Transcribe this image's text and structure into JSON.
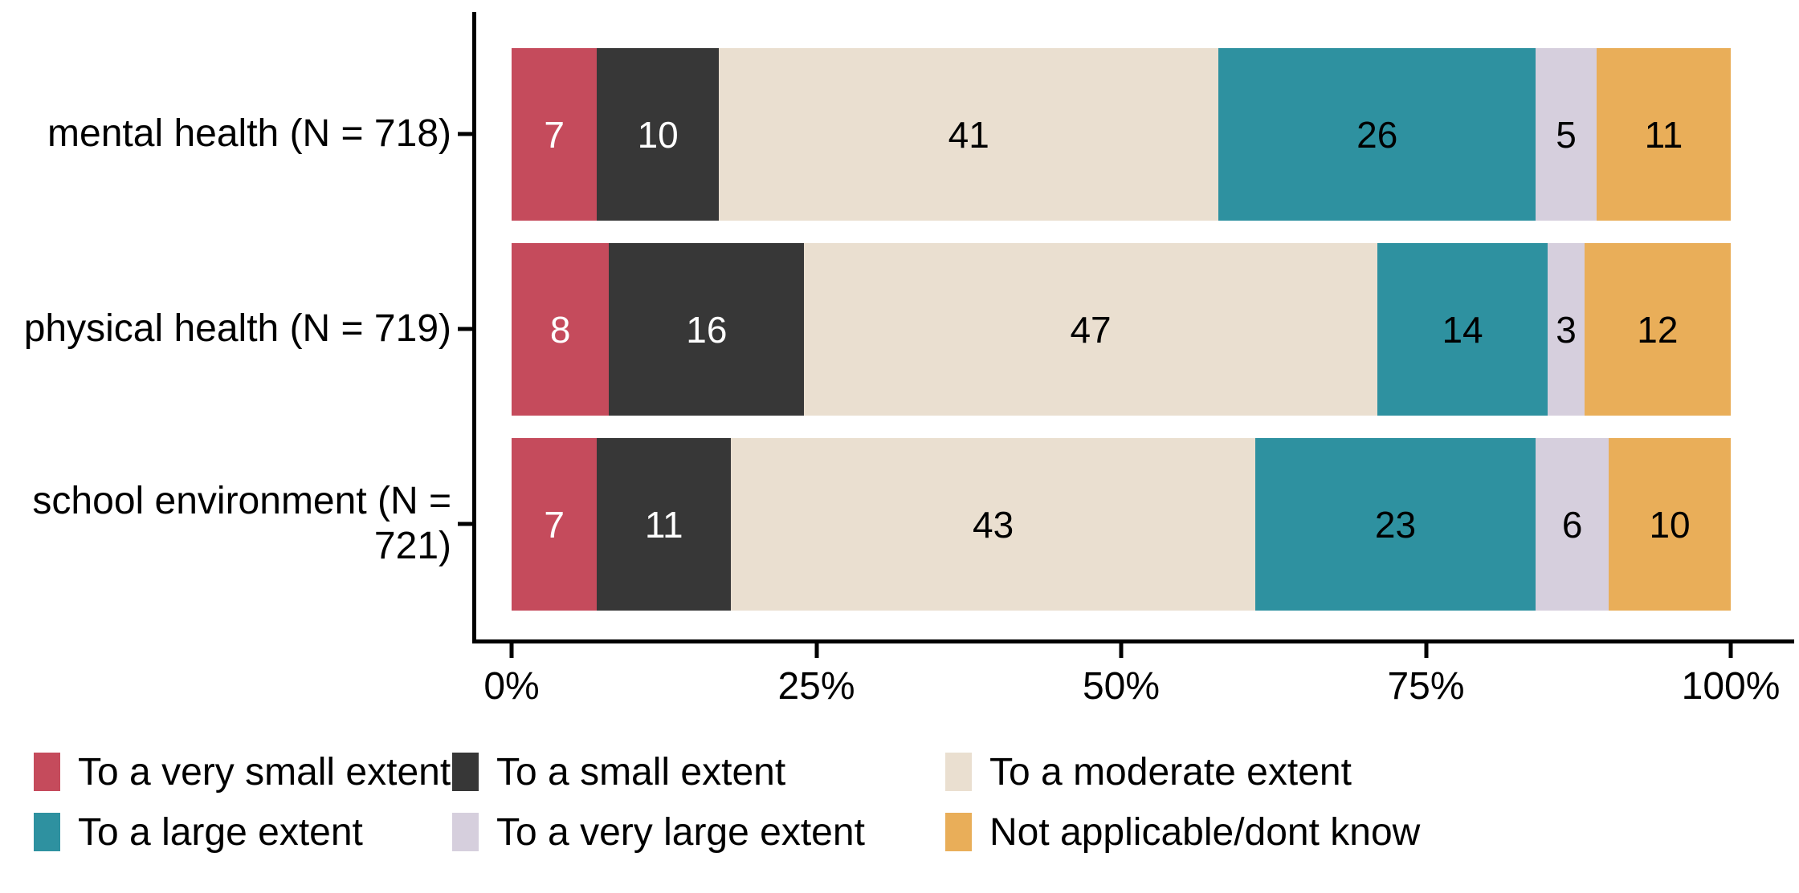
{
  "chart_data": {
    "type": "bar",
    "subtype": "horizontal_stacked_percent",
    "title": "",
    "xlabel": "",
    "ylabel": "",
    "categories": [
      "mental health (N = 718)",
      "physical health (N = 719)",
      "school environment (N = 721)"
    ],
    "series": [
      {
        "name": "To a very small extent",
        "color": "#C54B5C",
        "label_color": "#FFFFFF",
        "values": [
          7,
          8,
          7
        ]
      },
      {
        "name": "To a small extent",
        "color": "#373737",
        "label_color": "#FFFFFF",
        "values": [
          10,
          16,
          11
        ]
      },
      {
        "name": "To a moderate extent",
        "color": "#EADFD0",
        "label_color": "#000000",
        "values": [
          41,
          47,
          43
        ]
      },
      {
        "name": "To a large extent",
        "color": "#2E91A0",
        "label_color": "#000000",
        "values": [
          26,
          14,
          23
        ]
      },
      {
        "name": "To a very large extent",
        "color": "#D6CFDD",
        "label_color": "#000000",
        "values": [
          5,
          3,
          6
        ]
      },
      {
        "name": "Not applicable/dont know",
        "color": "#E9AE59",
        "label_color": "#000000",
        "values": [
          11,
          12,
          10
        ]
      }
    ],
    "x_axis": {
      "range": [
        0,
        100
      ],
      "tick_values": [
        0,
        25,
        50,
        75,
        100
      ],
      "tick_labels": [
        "0%",
        "25%",
        "50%",
        "75%",
        "100%"
      ]
    },
    "legend": {
      "position": "bottom",
      "columns": 3,
      "labels": [
        "To a very small extent",
        "To a small extent",
        "To a moderate extent",
        "To a large extent",
        "To a very large extent",
        "Not applicable/dont know"
      ]
    },
    "axis_color": "#000000",
    "background_color": "#FFFFFF"
  }
}
